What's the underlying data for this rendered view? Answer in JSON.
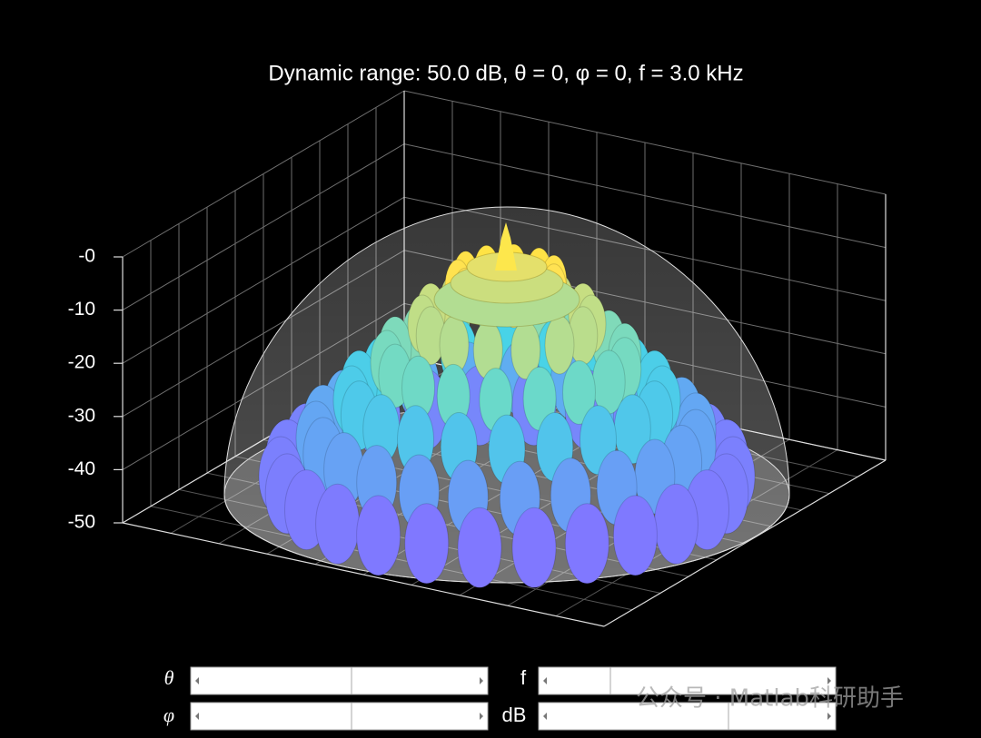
{
  "chart_data": {
    "type": "surface3d",
    "title": "Dynamic range: 50.0 dB, θ = 0, φ = 0, f = 3.0 kHz",
    "zlim": [
      -50,
      0
    ],
    "zticks": [
      -50,
      -40,
      -30,
      -20,
      -10,
      {
        "value": 0,
        "label": "-0"
      }
    ],
    "grid": true
  },
  "controls": {
    "labels": [
      "θ",
      "φ",
      "f",
      "dB"
    ]
  },
  "watermark": "公众号 · Matlab科研助手"
}
